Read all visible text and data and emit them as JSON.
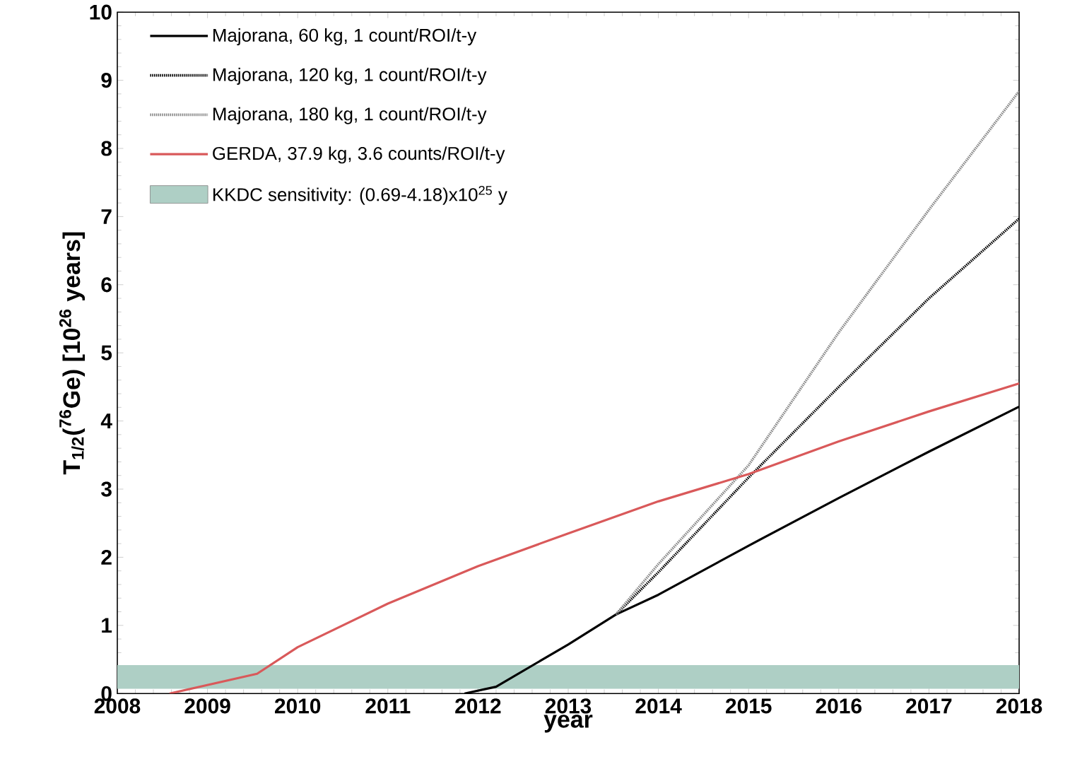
{
  "chart_data": {
    "type": "line",
    "xlabel": "year",
    "ylabel": "T$_{1/2}$($^{76}$Ge) [10$^{26}$ years]",
    "xlim": [
      2008,
      2018
    ],
    "ylim": [
      0,
      10
    ],
    "xticks": [
      2008,
      2009,
      2010,
      2011,
      2012,
      2013,
      2014,
      2015,
      2016,
      2017,
      2018
    ],
    "yticks": [
      0,
      1,
      2,
      3,
      4,
      5,
      6,
      7,
      8,
      9,
      10
    ],
    "legend": "top left",
    "grid": false,
    "marker": "none",
    "series": [
      {
        "name": "Majorana, 60 kg, 1 count/ROI/t-y",
        "color": "#000000",
        "line_style": "solid",
        "x": [
          2011.85,
          2012.2,
          2013,
          2013.53,
          2014,
          2015,
          2016,
          2017,
          2018
        ],
        "values": [
          0,
          0.1,
          0.72,
          1.16,
          1.45,
          2.17,
          2.87,
          3.55,
          4.21
        ]
      },
      {
        "name": "Majorana, 120 kg, 1 count/ROI/t-y",
        "color": "#000000",
        "line_style": "dotted",
        "x": [
          2013.53,
          2014,
          2015,
          2016,
          2017,
          2018
        ],
        "values": [
          1.16,
          1.78,
          3.17,
          4.5,
          5.8,
          6.97
        ]
      },
      {
        "name": "Majorana, 180 kg, 1 count/ROI/t-y",
        "color": "#888888",
        "line_style": "dotted",
        "x": [
          2013.53,
          2014,
          2015,
          2016,
          2017,
          2018
        ],
        "values": [
          1.16,
          1.9,
          3.35,
          5.3,
          7.1,
          8.84
        ]
      },
      {
        "name": "GERDA, 37.9 kg, 3.6 counts/ROI/t-y",
        "color": "#d9595a",
        "line_style": "solid",
        "x": [
          2008.58,
          2009.55,
          2010,
          2011,
          2012,
          2013,
          2014,
          2015,
          2016,
          2017,
          2018
        ],
        "values": [
          0,
          0.29,
          0.68,
          1.32,
          1.87,
          2.35,
          2.82,
          3.22,
          3.7,
          4.14,
          4.55
        ]
      }
    ],
    "bands": [
      {
        "axis": "y",
        "from": 0.069,
        "to": 0.418,
        "label": "KKDC sensitivity: (0.69-4.18)x10$^{25}$ y",
        "color": "#aecfc5"
      }
    ]
  }
}
